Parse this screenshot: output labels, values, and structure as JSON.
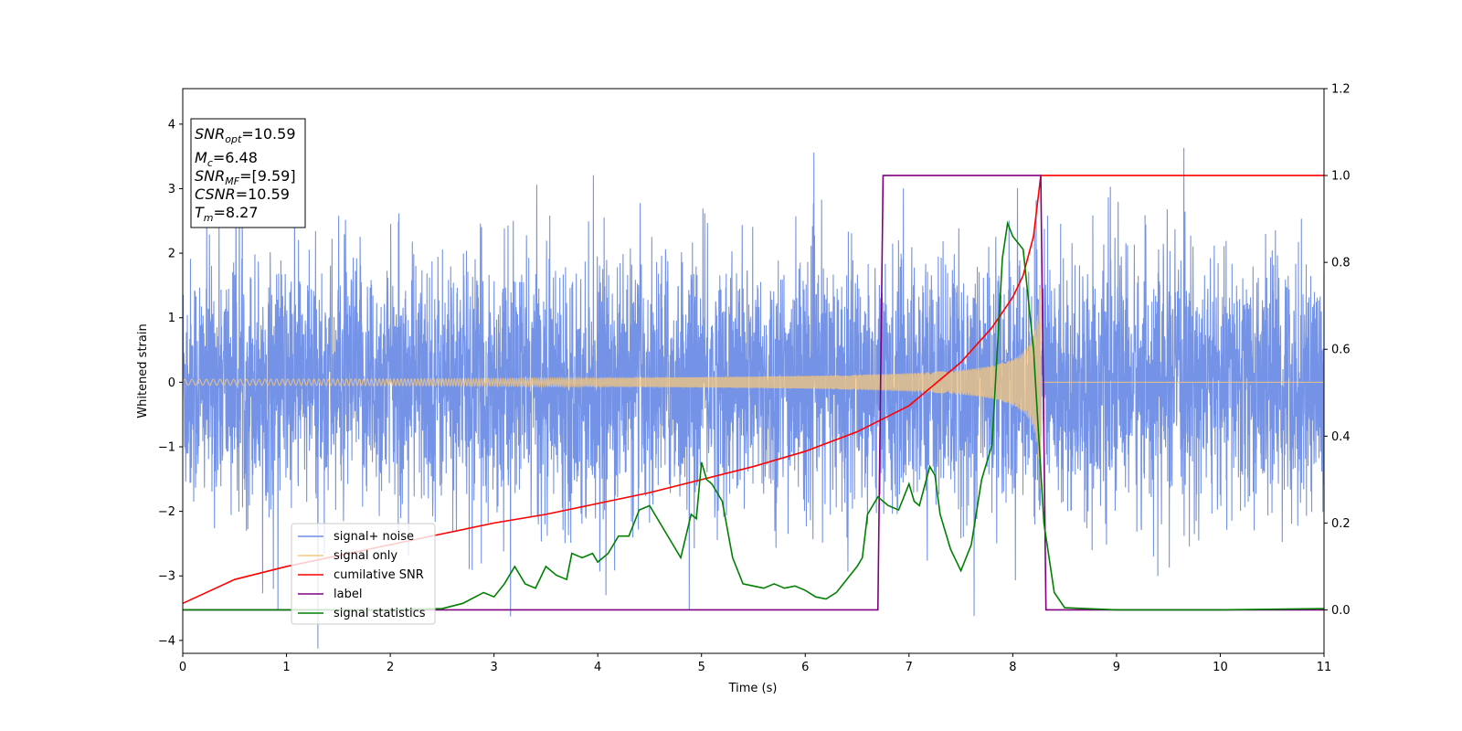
{
  "chart_data": {
    "type": "line",
    "xlabel": "Time (s)",
    "ylabel": "Whitened strain",
    "xlim": [
      0,
      11
    ],
    "ylim_left": [
      -4.2,
      4.55
    ],
    "ylim_right": [
      -0.1,
      1.2
    ],
    "x_ticks": [
      0,
      1,
      2,
      3,
      4,
      5,
      6,
      7,
      8,
      9,
      10,
      11
    ],
    "y_ticks_left": [
      -4,
      -3,
      -2,
      -1,
      0,
      1,
      2,
      3,
      4
    ],
    "y_ticks_right": [
      "0.0",
      "0.2",
      "0.4",
      "0.6",
      "0.8",
      "1.0",
      "1.2"
    ],
    "grid": false,
    "legend_position": "bottom-left",
    "colors": {
      "signal_noise": "#6d8de6",
      "signal_only": "#f5c77e",
      "cumulative_snr": "#ff0000",
      "label": "#800080",
      "signal_statistics": "#008000"
    },
    "annotation": {
      "snr_opt": {
        "sym": "SNR",
        "sub": "opt",
        "val": "=10.59"
      },
      "mc": {
        "sym": "M",
        "sub": "c",
        "val": "=6.48"
      },
      "snr_mf": {
        "sym": "SNR",
        "sub": "MF",
        "val": "=[9.59]"
      },
      "csnr": {
        "sym": "CSNR",
        "sub": "",
        "val": "=10.59"
      },
      "tm": {
        "sym": "T",
        "sub": "m",
        "val": "=8.27"
      }
    },
    "series": [
      {
        "name": "signal+ noise",
        "axis": "left",
        "style": "dense noise, amplitude about ±2.5 with spikes to ±4.1 over 0–11 s"
      },
      {
        "name": "signal only",
        "axis": "left",
        "style": "chirp growing from ±0.05 at 0 s to ±0.75 at 8.27 s, then 0"
      },
      {
        "name": "cumilative SNR",
        "axis": "right",
        "x": [
          0,
          0.5,
          1,
          1.5,
          2,
          2.5,
          3,
          3.5,
          4,
          4.5,
          5,
          5.5,
          6,
          6.5,
          7,
          7.5,
          7.8,
          8.0,
          8.1,
          8.2,
          8.27,
          11
        ],
        "values": [
          0.015,
          0.07,
          0.1,
          0.125,
          0.15,
          0.175,
          0.2,
          0.22,
          0.245,
          0.27,
          0.3,
          0.33,
          0.365,
          0.41,
          0.47,
          0.57,
          0.65,
          0.72,
          0.77,
          0.86,
          1.0,
          1.0
        ]
      },
      {
        "name": "label",
        "axis": "right",
        "x": [
          0,
          6.7,
          6.75,
          8.27,
          8.32,
          11
        ],
        "values": [
          0.0,
          0.0,
          1.0,
          1.0,
          0.0,
          0.0
        ]
      },
      {
        "name": "signal statistics",
        "axis": "right",
        "x": [
          0,
          0.5,
          1,
          2,
          2.5,
          2.7,
          2.9,
          3.0,
          3.1,
          3.2,
          3.3,
          3.4,
          3.5,
          3.6,
          3.7,
          3.75,
          3.85,
          3.95,
          4.0,
          4.1,
          4.2,
          4.3,
          4.4,
          4.5,
          4.6,
          4.7,
          4.8,
          4.9,
          4.95,
          5.0,
          5.05,
          5.1,
          5.2,
          5.3,
          5.4,
          5.5,
          5.6,
          5.7,
          5.8,
          5.9,
          6.0,
          6.1,
          6.2,
          6.3,
          6.4,
          6.5,
          6.55,
          6.6,
          6.7,
          6.8,
          6.9,
          7.0,
          7.05,
          7.1,
          7.2,
          7.25,
          7.3,
          7.4,
          7.5,
          7.6,
          7.7,
          7.8,
          7.9,
          7.95,
          8.0,
          8.1,
          8.2,
          8.3,
          8.4,
          8.5,
          9,
          10,
          11
        ],
        "values": [
          0.0,
          0.0,
          0.0,
          0.0,
          0.003,
          0.015,
          0.04,
          0.03,
          0.06,
          0.1,
          0.06,
          0.05,
          0.1,
          0.08,
          0.07,
          0.13,
          0.12,
          0.13,
          0.11,
          0.13,
          0.17,
          0.17,
          0.23,
          0.24,
          0.2,
          0.16,
          0.12,
          0.22,
          0.21,
          0.34,
          0.3,
          0.29,
          0.25,
          0.12,
          0.06,
          0.055,
          0.05,
          0.06,
          0.05,
          0.055,
          0.045,
          0.03,
          0.025,
          0.04,
          0.07,
          0.1,
          0.12,
          0.22,
          0.26,
          0.24,
          0.23,
          0.29,
          0.25,
          0.24,
          0.33,
          0.31,
          0.22,
          0.14,
          0.09,
          0.15,
          0.3,
          0.38,
          0.81,
          0.89,
          0.86,
          0.83,
          0.6,
          0.2,
          0.04,
          0.005,
          0.0,
          0.0,
          0.003
        ]
      }
    ]
  }
}
